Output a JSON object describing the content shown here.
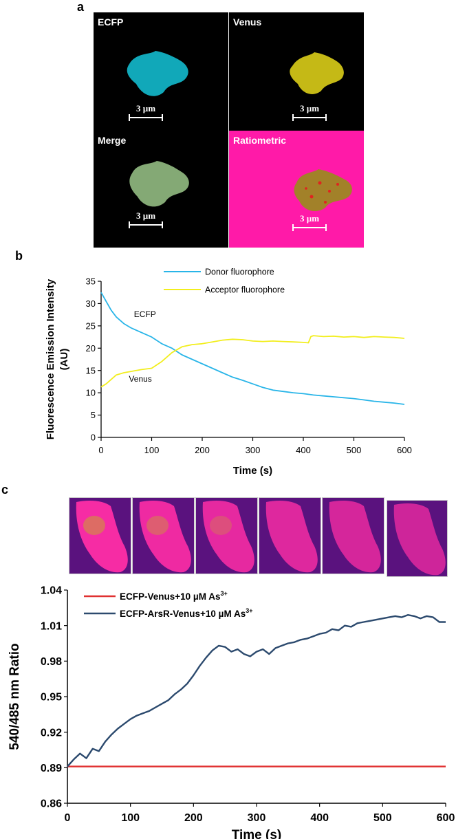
{
  "panels": {
    "a": "a",
    "b": "b",
    "c": "c"
  },
  "micrographs": [
    {
      "label": "ECFP",
      "scale": "3 µm",
      "cell_color": "#12b6c9",
      "bg": "#000000"
    },
    {
      "label": "Venus",
      "scale": "3 µm",
      "cell_color": "#d6c918",
      "bg": "#000000"
    },
    {
      "label": "Merge",
      "scale": "3 µm",
      "cell_color": "#8fb77f",
      "bg": "#000000"
    },
    {
      "label": "Ratiometric",
      "scale": "3 µm",
      "cell_color": "#9a8a1e",
      "bg": "#ff1aa8"
    }
  ],
  "ratio_frames": {
    "count": 6,
    "bg": "#5a127e",
    "fill": "#ff2ea6"
  },
  "chart_data": [
    {
      "type": "line",
      "xlabel": "Time (s)",
      "ylabel": "Fluorescence Emission Intensity (AU)",
      "xlim": [
        0,
        600
      ],
      "ylim": [
        0,
        35
      ],
      "xticks": [
        0,
        100,
        200,
        300,
        400,
        500,
        600
      ],
      "yticks": [
        0,
        5,
        10,
        15,
        20,
        25,
        30,
        35
      ],
      "legend_position": "top-right",
      "series": [
        {
          "name": "Donor fluorophore",
          "color": "#29b5e8",
          "x": [
            0,
            10,
            20,
            30,
            45,
            60,
            80,
            100,
            120,
            140,
            160,
            180,
            200,
            220,
            240,
            260,
            280,
            300,
            320,
            340,
            360,
            380,
            400,
            420,
            440,
            460,
            480,
            500,
            520,
            540,
            560,
            580,
            600
          ],
          "y": [
            32.5,
            30.5,
            28.5,
            27,
            25.5,
            24.5,
            23.5,
            22.5,
            21,
            20,
            18.5,
            17.5,
            16.5,
            15.5,
            14.5,
            13.5,
            12.8,
            12,
            11.2,
            10.6,
            10.3,
            10,
            9.8,
            9.5,
            9.3,
            9.1,
            8.9,
            8.7,
            8.4,
            8.1,
            7.9,
            7.7,
            7.4
          ]
        },
        {
          "name": "Acceptor fluorophore",
          "color": "#f2ee1d",
          "x": [
            0,
            10,
            20,
            30,
            45,
            60,
            80,
            100,
            120,
            140,
            160,
            180,
            200,
            220,
            240,
            260,
            280,
            300,
            320,
            340,
            360,
            380,
            400,
            410,
            415,
            420,
            440,
            460,
            480,
            500,
            520,
            540,
            560,
            580,
            600
          ],
          "y": [
            11.3,
            12,
            13,
            14,
            14.5,
            14.8,
            15.2,
            15.5,
            17,
            19,
            20.3,
            20.8,
            21,
            21.4,
            21.8,
            22,
            21.9,
            21.6,
            21.5,
            21.6,
            21.5,
            21.4,
            21.3,
            21.2,
            22.6,
            22.8,
            22.6,
            22.7,
            22.5,
            22.6,
            22.4,
            22.6,
            22.5,
            22.4,
            22.2
          ]
        }
      ],
      "annotations": [
        {
          "text": "ECFP",
          "x": 65,
          "y": 27
        },
        {
          "text": "Venus",
          "x": 55,
          "y": 12.5
        }
      ]
    },
    {
      "type": "line",
      "xlabel": "Time (s)",
      "ylabel": "540/485 nm Ratio",
      "xlim": [
        0,
        600
      ],
      "ylim": [
        0.86,
        1.04
      ],
      "xticks": [
        0,
        100,
        200,
        300,
        400,
        500,
        600
      ],
      "yticks": [
        "0.86",
        "0.89",
        "0.92",
        "0.95",
        "0.98",
        "1.01",
        "1.04"
      ],
      "legend_position": "top-left",
      "series": [
        {
          "name": "ECFP-Venus+10 µM As",
          "superscript": "3+",
          "color": "#e03131",
          "x": [
            0,
            50,
            100,
            150,
            200,
            250,
            300,
            350,
            400,
            450,
            500,
            550,
            600
          ],
          "y": [
            0.891,
            0.891,
            0.891,
            0.891,
            0.891,
            0.891,
            0.891,
            0.891,
            0.891,
            0.891,
            0.891,
            0.891,
            0.891
          ]
        },
        {
          "name": "ECFP-ArsR-Venus+10 µM As",
          "superscript": "3+",
          "color": "#2c4a6e",
          "x": [
            0,
            10,
            20,
            30,
            40,
            50,
            60,
            70,
            80,
            90,
            100,
            110,
            120,
            130,
            140,
            150,
            160,
            170,
            180,
            190,
            200,
            210,
            220,
            230,
            240,
            250,
            260,
            270,
            280,
            290,
            300,
            310,
            320,
            330,
            340,
            350,
            360,
            370,
            380,
            390,
            400,
            410,
            420,
            430,
            440,
            450,
            460,
            470,
            480,
            490,
            500,
            510,
            520,
            530,
            540,
            550,
            560,
            570,
            580,
            590,
            600
          ],
          "y": [
            0.891,
            0.897,
            0.902,
            0.898,
            0.906,
            0.904,
            0.912,
            0.918,
            0.923,
            0.927,
            0.931,
            0.934,
            0.936,
            0.938,
            0.941,
            0.944,
            0.947,
            0.952,
            0.956,
            0.961,
            0.968,
            0.976,
            0.983,
            0.989,
            0.993,
            0.992,
            0.988,
            0.99,
            0.986,
            0.984,
            0.988,
            0.99,
            0.986,
            0.991,
            0.993,
            0.995,
            0.996,
            0.998,
            0.999,
            1.001,
            1.003,
            1.004,
            1.007,
            1.006,
            1.01,
            1.009,
            1.012,
            1.013,
            1.014,
            1.015,
            1.016,
            1.017,
            1.018,
            1.017,
            1.019,
            1.018,
            1.016,
            1.018,
            1.017,
            1.013,
            1.013
          ]
        }
      ]
    }
  ]
}
